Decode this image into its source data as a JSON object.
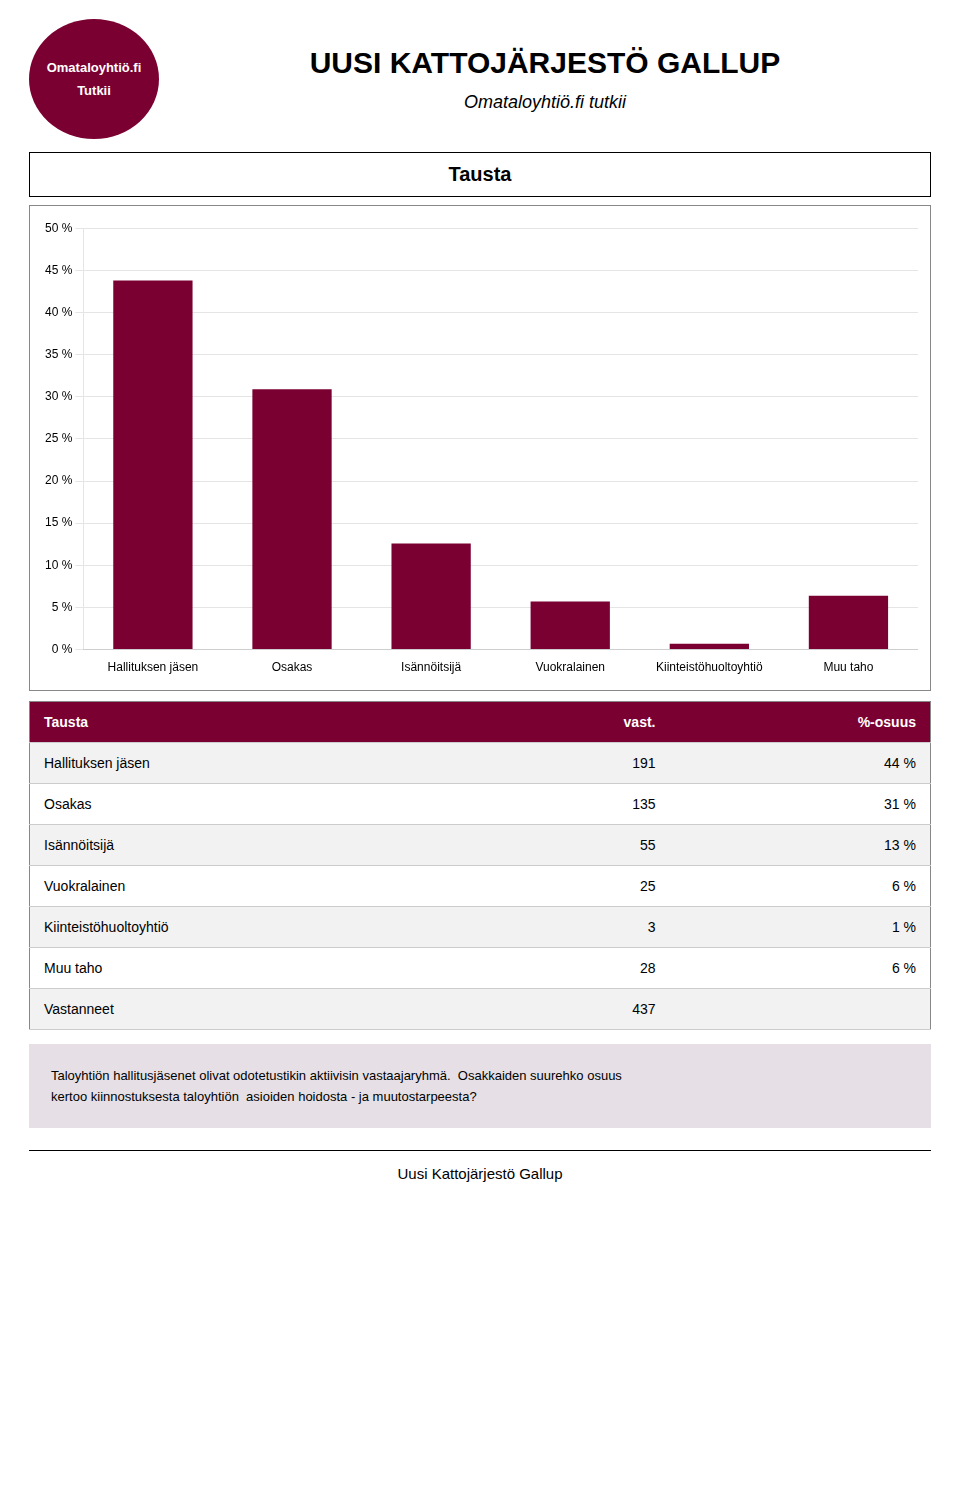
{
  "chart_data": {
    "type": "bar",
    "title": "UUSI KATTOJÄRJESTÖ GALLUP",
    "subtitle": "Omataloyhtiö.fi tutkii",
    "categories": [
      "Hallituksen jäsen",
      "Osakas",
      "Isännöitsijä",
      "Vuokralainen",
      "Kiinteistöhuoltoyhtiö",
      "Muu taho"
    ],
    "values": [
      43.8,
      30.9,
      12.6,
      5.7,
      0.7,
      6.4
    ],
    "color": "#7B0032",
    "ylim": [
      0,
      50
    ],
    "yticks": [
      {
        "value": 0,
        "label": "0 %"
      },
      {
        "value": 5,
        "label": "5 %"
      },
      {
        "value": 10,
        "label": "10 %"
      },
      {
        "value": 15,
        "label": "15 %"
      },
      {
        "value": 20,
        "label": "20 %"
      },
      {
        "value": 25,
        "label": "25 %"
      },
      {
        "value": 30,
        "label": "30 %"
      },
      {
        "value": 35,
        "label": "35 %"
      },
      {
        "value": 40,
        "label": "40 %"
      },
      {
        "value": 45,
        "label": "45 %"
      },
      {
        "value": 50,
        "label": "50 %"
      }
    ],
    "grid": true
  },
  "logo_text": [
    "Omataloyhtiö.fi",
    "Tutkii"
  ],
  "section_title": "Tausta",
  "table": {
    "header": [
      "Tausta",
      "vast.",
      "%-osuus"
    ],
    "rows": [
      [
        "Hallituksen jäsen",
        "191",
        "44 %"
      ],
      [
        "Osakas",
        "135",
        "31 %"
      ],
      [
        "Isännöitsijä",
        "55",
        "13 %"
      ],
      [
        "Vuokralainen",
        "25",
        "6 %"
      ],
      [
        "Kiinteistöhuoltoyhtiö",
        "3",
        "1 %"
      ],
      [
        "Muu taho",
        "28",
        "6 %"
      ],
      [
        "Vastanneet",
        "437"
      ]
    ]
  },
  "comment": [
    "Taloyhtiön hallitusjäsenet olivat odotetustikin aktiivisin vastaajaryhmä.  Osakkaiden suurehko osuus",
    "kertoo kiinnostuksesta taloyhtiön  asioiden hoidosta - ja muutostarpeesta?"
  ],
  "footer": "Uusi Kattojärjestö Gallup"
}
